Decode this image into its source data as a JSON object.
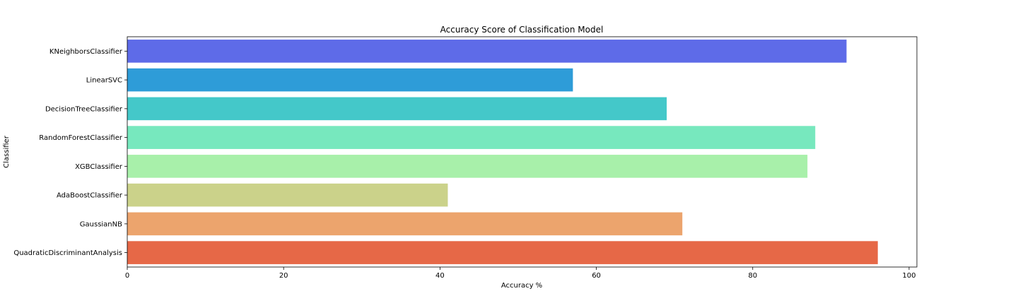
{
  "chart_data": {
    "type": "bar",
    "orientation": "horizontal",
    "title": "Accuracy Score of Classification Model",
    "xlabel": "Accuracy %",
    "ylabel": "Classifier",
    "xlim": [
      0,
      101
    ],
    "xticks": [
      0,
      20,
      40,
      60,
      80,
      100
    ],
    "grid": false,
    "legend": "none",
    "categories": [
      "KNeighborsClassifier",
      "LinearSVC",
      "DecisionTreeClassifier",
      "RandomForestClassifier",
      "XGBClassifier",
      "AdaBoostClassifier",
      "GaussianNB",
      "QuadraticDiscriminantAnalysis"
    ],
    "values": [
      92,
      57,
      69,
      88,
      87,
      41,
      71,
      96
    ],
    "colors": [
      "#5e6be8",
      "#2e9cd8",
      "#44c8c9",
      "#77e8be",
      "#a8f0aa",
      "#cbd28a",
      "#eca46d",
      "#e66847"
    ]
  }
}
